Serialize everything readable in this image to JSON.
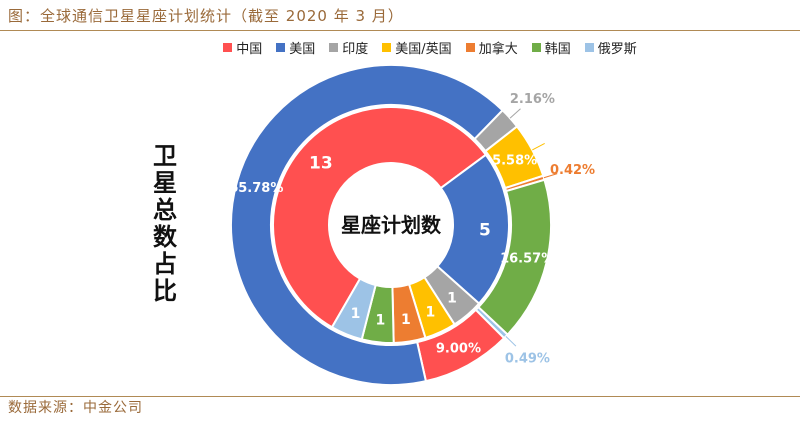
{
  "title": "图：全球通信卫星星座计划统计（截至 2020 年 3 月）",
  "source": "数据来源：中金公司",
  "side_label": "卫星总数占比",
  "center_label": "星座计划数",
  "chart_data": {
    "type": "pie",
    "variant": "double-donut",
    "legend_position": "top",
    "outer_ring": {
      "description_label": "卫星总数占比",
      "unit": "%",
      "slices": [
        {
          "name": "中国",
          "value": 9.0,
          "label": "9.00%",
          "color": "#ff5050"
        },
        {
          "name": "美国",
          "value": 65.78,
          "label": "65.78%",
          "color": "#4472c4"
        },
        {
          "name": "印度",
          "value": 2.16,
          "label": "2.16%",
          "color": "#a5a5a5"
        },
        {
          "name": "美国/英国",
          "value": 5.58,
          "label": "5.58%",
          "color": "#ffc000"
        },
        {
          "name": "加拿大",
          "value": 0.42,
          "label": "0.42%",
          "color": "#ed7d31"
        },
        {
          "name": "韩国",
          "value": 16.57,
          "label": "16.57%",
          "color": "#70ad47"
        },
        {
          "name": "俄罗斯",
          "value": 0.49,
          "label": "0.49%",
          "color": "#9dc3e6"
        }
      ]
    },
    "inner_ring": {
      "description_label": "星座计划数",
      "slices": [
        {
          "name": "中国",
          "value": 13,
          "label": "13",
          "color": "#ff5050"
        },
        {
          "name": "美国",
          "value": 5,
          "label": "5",
          "color": "#4472c4"
        },
        {
          "name": "印度",
          "value": 1,
          "label": "1",
          "color": "#a5a5a5"
        },
        {
          "name": "美国/英国",
          "value": 1,
          "label": "1",
          "color": "#ffc000"
        },
        {
          "name": "加拿大",
          "value": 1,
          "label": "1",
          "color": "#ed7d31"
        },
        {
          "name": "韩国",
          "value": 1,
          "label": "1",
          "color": "#70ad47"
        },
        {
          "name": "俄罗斯",
          "value": 1,
          "label": "1",
          "color": "#9dc3e6"
        }
      ]
    }
  }
}
